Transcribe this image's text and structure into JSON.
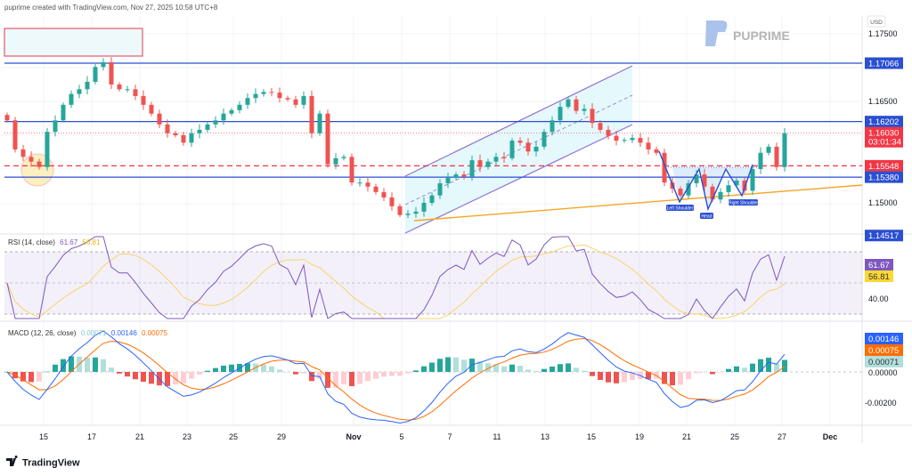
{
  "header": {
    "attribution": "puprime created with TradingView.com, Nov 27, 2025 10:58 UTC+8"
  },
  "watermark": {
    "brand": "PUPRIME"
  },
  "footer": {
    "logo_text": "TradingView"
  },
  "colors": {
    "up": "#26a69a",
    "down": "#ef5350",
    "level_blue": "#2a4fd1",
    "level_red": "#f23645",
    "rsi": "#7e57c2",
    "rsi_ma": "#fdd835",
    "macd": "#2962ff",
    "signal": "#ff6d00",
    "hist_teal": "#b2dfdb",
    "channel": "#7e57c2",
    "trendline": "#f5a623"
  },
  "price_axis": {
    "currency": "USD",
    "ticks": [
      "1.17500",
      "1.16500",
      "1.15000"
    ],
    "tick_values": [
      1.175,
      1.165,
      1.15
    ],
    "levels": [
      {
        "value": 1.17066,
        "label": "1.17066",
        "style": "blue"
      },
      {
        "value": 1.16202,
        "label": "1.16202",
        "style": "blue"
      },
      {
        "value": 1.15548,
        "label": "1.15548",
        "style": "red-dashed"
      },
      {
        "value": 1.1538,
        "label": "1.15380",
        "style": "blue"
      },
      {
        "value": 1.14517,
        "label": "1.14517",
        "style": "blue"
      }
    ],
    "last_price": {
      "value": 1.1603,
      "label": "1.16030",
      "countdown": "03:01:34"
    }
  },
  "time_axis": {
    "labels": [
      "15",
      "17",
      "21",
      "23",
      "25",
      "29",
      "Nov",
      "5",
      "7",
      "11",
      "13",
      "15",
      "19",
      "21",
      "25",
      "27",
      "Dec"
    ]
  },
  "annotations": {
    "left_shoulder": "Left Shoulder",
    "head": "Head",
    "right_shoulder": "Right Shoulder"
  },
  "rsi": {
    "title": "RSI (14, close)",
    "value": "61.67",
    "ma_value": "56.81",
    "axis_tick": "40.00",
    "bands": [
      70,
      50,
      30
    ]
  },
  "macd": {
    "title": "MACD (12, 26, close)",
    "histogram": "0.00071",
    "macd": "0.00146",
    "signal": "0.00075",
    "ticks": [
      "0.00000",
      "-0.00200"
    ]
  },
  "chart_data": {
    "type": "candlestick",
    "symbol_quote": "USD",
    "ylim": [
      1.1435,
      1.1775
    ],
    "closes": [
      1.1622,
      1.1579,
      1.1568,
      1.1561,
      1.1553,
      1.1605,
      1.1622,
      1.1645,
      1.1661,
      1.1668,
      1.1679,
      1.1701,
      1.1708,
      1.1675,
      1.1668,
      1.1668,
      1.1658,
      1.1645,
      1.1632,
      1.1616,
      1.1603,
      1.16,
      1.1589,
      1.1603,
      1.1608,
      1.1616,
      1.1622,
      1.1632,
      1.1637,
      1.1645,
      1.1655,
      1.1661,
      1.1664,
      1.1663,
      1.1655,
      1.1653,
      1.1645,
      1.1658,
      1.1603,
      1.1632,
      1.1557,
      1.1566,
      1.1568,
      1.153,
      1.153,
      1.1524,
      1.1516,
      1.1508,
      1.1495,
      1.1482,
      1.1484,
      1.1487,
      1.15,
      1.1511,
      1.1529,
      1.1537,
      1.1542,
      1.1539,
      1.1563,
      1.1553,
      1.1561,
      1.1568,
      1.1566,
      1.1592,
      1.1589,
      1.1576,
      1.1583,
      1.1605,
      1.1622,
      1.1642,
      1.1653,
      1.1636,
      1.1639,
      1.1618,
      1.1608,
      1.1599,
      1.1592,
      1.1593,
      1.1596,
      1.1589,
      1.1579,
      1.1574,
      1.153,
      1.1521,
      1.1511,
      1.1529,
      1.1542,
      1.1524,
      1.1505,
      1.1516,
      1.1526,
      1.1533,
      1.1518,
      1.155,
      1.1574,
      1.1583,
      1.1553,
      1.1603
    ],
    "first_open": 1.163
  }
}
